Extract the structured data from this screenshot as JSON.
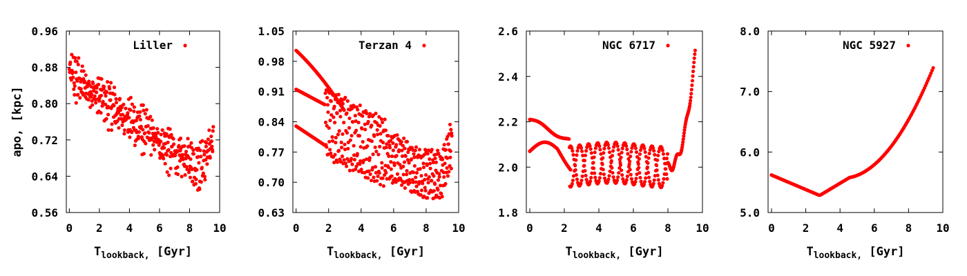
{
  "chart_data": [
    {
      "type": "scatter",
      "series": [
        {
          "name": "Liller",
          "color": "#ff0000"
        }
      ],
      "xlabel_main": "T",
      "xlabel_sub": "lookback,",
      "xlabel_unit": "[Gyr]",
      "ylabel": "apo, [kpc]",
      "xlim": [
        -0.2,
        10
      ],
      "ylim": [
        0.56,
        0.96
      ],
      "xticks": [
        "0",
        "2",
        "4",
        "6",
        "8",
        "10"
      ],
      "xtick_values": [
        0,
        2,
        4,
        6,
        8,
        10
      ],
      "yticks": [
        "0.56",
        "0.64",
        "0.72",
        "0.80",
        "0.88",
        "0.96"
      ],
      "ytick_values": [
        0.56,
        0.64,
        0.72,
        0.8,
        0.88,
        0.96
      ],
      "legend_position": "top-right",
      "pattern": {
        "start": 0.87,
        "end_min": 0.64,
        "final_rise": 0.8,
        "amp": 0.035,
        "kind": "band"
      }
    },
    {
      "type": "scatter",
      "series": [
        {
          "name": "Terzan 4",
          "color": "#ff0000"
        }
      ],
      "xlabel_main": "T",
      "xlabel_sub": "lookback,",
      "xlabel_unit": "[Gyr]",
      "ylabel": "",
      "xlim": [
        -0.2,
        10
      ],
      "ylim": [
        0.63,
        1.05
      ],
      "xticks": [
        "0",
        "2",
        "4",
        "6",
        "8",
        "10"
      ],
      "xtick_values": [
        0,
        2,
        4,
        6,
        8,
        10
      ],
      "yticks": [
        "0.63",
        "0.70",
        "0.77",
        "0.84",
        "0.91",
        "0.98",
        "1.05"
      ],
      "ytick_values": [
        0.63,
        0.7,
        0.77,
        0.84,
        0.91,
        0.98,
        1.05
      ],
      "legend_position": "top-right",
      "pattern": {
        "kind": "terzan"
      }
    },
    {
      "type": "scatter",
      "series": [
        {
          "name": "NGC 6717",
          "color": "#ff0000"
        }
      ],
      "xlabel_main": "T",
      "xlabel_sub": "lookback,",
      "xlabel_unit": "[Gyr]",
      "ylabel": "",
      "xlim": [
        -0.2,
        10
      ],
      "ylim": [
        1.8,
        2.6
      ],
      "xticks": [
        "0",
        "2",
        "4",
        "6",
        "8",
        "10"
      ],
      "xtick_values": [
        0,
        2,
        4,
        6,
        8,
        10
      ],
      "yticks": [
        "1.8",
        "2.0",
        "2.2",
        "2.4",
        "2.6"
      ],
      "ytick_values": [
        1.8,
        2.0,
        2.2,
        2.4,
        2.6
      ],
      "legend_position": "top-right",
      "pattern": {
        "kind": "ngc6717"
      }
    },
    {
      "type": "scatter",
      "series": [
        {
          "name": "NGC 5927",
          "color": "#ff0000"
        }
      ],
      "xlabel_main": "T",
      "xlabel_sub": "lookback,",
      "xlabel_unit": "[Gyr]",
      "ylabel": "",
      "xlim": [
        -0.2,
        10
      ],
      "ylim": [
        5.0,
        8.0
      ],
      "xticks": [
        "0",
        "2",
        "4",
        "6",
        "8",
        "10"
      ],
      "xtick_values": [
        0,
        2,
        4,
        6,
        8,
        10
      ],
      "yticks": [
        "5.0",
        "6.0",
        "7.0",
        "8.0"
      ],
      "ytick_values": [
        5.0,
        6.0,
        7.0,
        8.0
      ],
      "legend_position": "top-right",
      "pattern": {
        "kind": "ngc5927"
      }
    }
  ]
}
